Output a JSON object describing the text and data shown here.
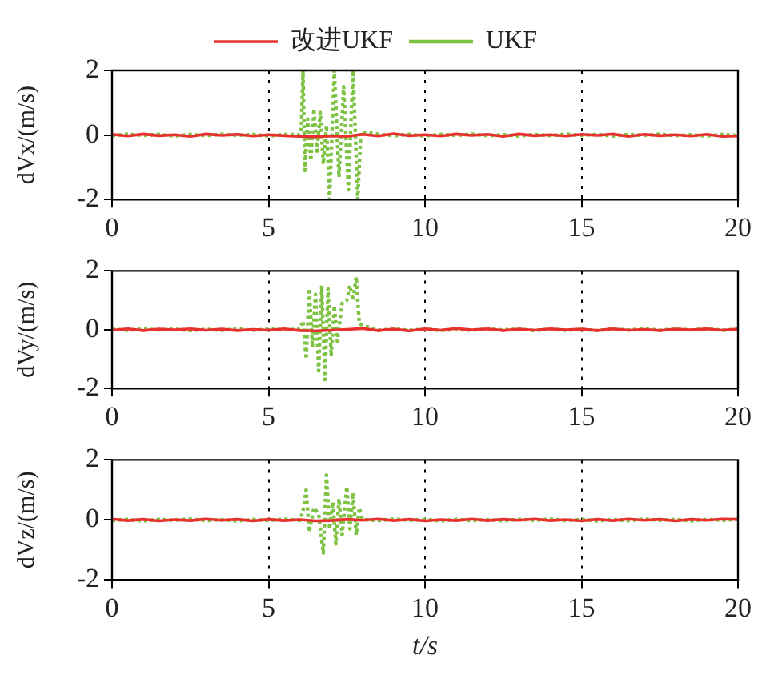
{
  "chart_data": [
    {
      "type": "line",
      "ylabel": "dVx/(m/s)",
      "xlim": [
        0,
        20
      ],
      "ylim": [
        -2,
        2
      ],
      "xticks": [
        0,
        5,
        10,
        15,
        20
      ],
      "yticks": [
        -2,
        0,
        2
      ],
      "grid": "x",
      "legend": "top",
      "marker": "none",
      "series": [
        {
          "name": "改进UKF",
          "color": "#e8312f",
          "line_style": "solid",
          "x": [
            0,
            0.5,
            1,
            1.5,
            2,
            2.5,
            3,
            3.5,
            4,
            4.5,
            5,
            5.5,
            6,
            6.5,
            7,
            7.5,
            8,
            8.5,
            9,
            9.5,
            10,
            10.5,
            11,
            11.5,
            12,
            12.5,
            13,
            13.5,
            14,
            14.5,
            15,
            15.5,
            16,
            16.5,
            17,
            17.5,
            18,
            18.5,
            19,
            19.5,
            20
          ],
          "values": [
            0.02,
            -0.03,
            0.03,
            -0.02,
            0.01,
            -0.04,
            0.03,
            -0.01,
            0.02,
            -0.03,
            0.01,
            -0.02,
            -0.04,
            -0.05,
            -0.03,
            -0.04,
            0.02,
            -0.03,
            0.04,
            -0.02,
            0.01,
            -0.03,
            0.03,
            -0.01,
            0.02,
            -0.04,
            0.03,
            -0.02,
            0.01,
            -0.03,
            0.02,
            -0.01,
            0.03,
            -0.04,
            0.02,
            -0.02,
            0.01,
            -0.03,
            0.02,
            -0.04,
            -0.03
          ]
        },
        {
          "name": "UKF",
          "color": "#7dc242",
          "line_style": "dotted",
          "x": [
            0,
            0.5,
            1,
            1.5,
            2,
            2.5,
            3,
            3.5,
            4,
            4.5,
            5,
            5.5,
            6,
            6.05,
            6.1,
            6.16,
            6.25,
            6.35,
            6.45,
            6.55,
            6.65,
            6.75,
            6.85,
            6.95,
            7.1,
            7.25,
            7.4,
            7.55,
            7.7,
            7.85,
            7.95,
            8.5,
            9,
            9.5,
            10,
            10.5,
            11,
            11.5,
            12,
            12.5,
            13,
            13.5,
            14,
            14.5,
            15,
            15.5,
            16,
            16.5,
            17,
            17.5,
            18,
            18.5,
            19,
            19.5,
            20
          ],
          "values": [
            -0.02,
            0.03,
            -0.01,
            0.02,
            -0.03,
            0.02,
            -0.02,
            0.03,
            -0.01,
            0.02,
            -0.03,
            0.02,
            0.01,
            0.3,
            2,
            -1.1,
            0.5,
            -0.8,
            0.8,
            -0.5,
            0.7,
            -0.9,
            0.3,
            -2,
            2,
            -1.3,
            1.5,
            -1.7,
            2,
            -2,
            0.1,
            0.03,
            -0.02,
            0.02,
            -0.03,
            0.02,
            -0.01,
            0.03,
            -0.02,
            0.01,
            -0.03,
            0.02,
            -0.02,
            0.03,
            -0.01,
            0.02,
            -0.03,
            0.02,
            -0.01,
            0.03,
            -0.02,
            0.01,
            -0.03,
            0.02,
            -0.01
          ]
        }
      ]
    },
    {
      "type": "line",
      "ylabel": "dVy/(m/s)",
      "xlim": [
        0,
        20
      ],
      "ylim": [
        -2,
        2
      ],
      "xticks": [
        0,
        5,
        10,
        15,
        20
      ],
      "yticks": [
        -2,
        0,
        2
      ],
      "grid": "x",
      "legend": false,
      "marker": "none",
      "series": [
        {
          "color": "#e8312f",
          "line_style": "solid",
          "x": [
            0,
            0.5,
            1,
            1.5,
            2,
            2.5,
            3,
            3.5,
            4,
            4.5,
            5,
            5.5,
            6,
            6.5,
            7,
            7.5,
            8,
            8.5,
            9,
            9.5,
            10,
            10.5,
            11,
            11.5,
            12,
            12.5,
            13,
            13.5,
            14,
            14.5,
            15,
            15.5,
            16,
            16.5,
            17,
            17.5,
            18,
            18.5,
            19,
            19.5,
            20
          ],
          "values": [
            -0.02,
            0.03,
            -0.03,
            0.02,
            -0.01,
            0.03,
            -0.02,
            0.02,
            -0.03,
            0.01,
            -0.02,
            0.03,
            -0.03,
            -0.04,
            -0.02,
            0.01,
            0.04,
            -0.03,
            0.02,
            -0.04,
            0.03,
            -0.02,
            0.04,
            -0.01,
            0.03,
            -0.03,
            0.02,
            -0.02,
            0.03,
            -0.01,
            0.02,
            -0.03,
            0.03,
            -0.02,
            0.01,
            -0.03,
            0.02,
            -0.01,
            0.03,
            -0.02,
            0.02
          ]
        },
        {
          "color": "#7dc242",
          "line_style": "dotted",
          "x": [
            0,
            0.5,
            1,
            1.5,
            2,
            2.5,
            3,
            3.5,
            4,
            4.5,
            5,
            5.5,
            6,
            6.1,
            6.2,
            6.3,
            6.4,
            6.5,
            6.6,
            6.7,
            6.8,
            6.9,
            7.0,
            7.1,
            7.2,
            7.35,
            7.5,
            7.6,
            7.7,
            7.8,
            7.9,
            8.5,
            9,
            9.5,
            10,
            10.5,
            11,
            11.5,
            12,
            12.5,
            13,
            13.5,
            14,
            14.5,
            15,
            15.5,
            16,
            16.5,
            17,
            17.5,
            18,
            18.5,
            19,
            19.5,
            20
          ],
          "values": [
            0.02,
            -0.02,
            0.03,
            -0.01,
            0.02,
            -0.03,
            0.01,
            -0.02,
            0.03,
            -0.02,
            0.02,
            -0.01,
            0.02,
            0.3,
            -1.0,
            1.4,
            -0.6,
            1.2,
            -1.4,
            1.5,
            -1.7,
            1.4,
            -0.9,
            0.8,
            -0.4,
            0.9,
            1.0,
            1.5,
            1.0,
            1.8,
            0.2,
            -0.02,
            0.03,
            -0.02,
            0.02,
            -0.03,
            0.01,
            -0.02,
            0.03,
            -0.01,
            0.02,
            -0.03,
            0.02,
            -0.02,
            0.01,
            -0.03,
            0.02,
            -0.01,
            0.03,
            -0.02,
            0.02,
            -0.01,
            0.03,
            -0.02,
            0.02
          ]
        }
      ]
    },
    {
      "type": "line",
      "xlabel": "t/s",
      "ylabel": "dVz/(m/s)",
      "xlim": [
        0,
        20
      ],
      "ylim": [
        -2,
        2
      ],
      "xticks": [
        0,
        5,
        10,
        15,
        20
      ],
      "yticks": [
        -2,
        0,
        2
      ],
      "grid": "x",
      "legend": false,
      "marker": "none",
      "series": [
        {
          "color": "#e8312f",
          "line_style": "solid",
          "x": [
            0,
            0.5,
            1,
            1.5,
            2,
            2.5,
            3,
            3.5,
            4,
            4.5,
            5,
            5.5,
            6,
            6.5,
            7,
            7.5,
            8,
            8.5,
            9,
            9.5,
            10,
            10.5,
            11,
            11.5,
            12,
            12.5,
            13,
            13.5,
            14,
            14.5,
            15,
            15.5,
            16,
            16.5,
            17,
            17.5,
            18,
            18.5,
            19,
            19.5,
            20
          ],
          "values": [
            0.03,
            -0.02,
            0.02,
            -0.03,
            0.01,
            -0.02,
            0.03,
            -0.01,
            0.02,
            -0.03,
            0.02,
            -0.02,
            0.01,
            -0.03,
            -0.02,
            0.02,
            -0.01,
            0.03,
            -0.02,
            0.02,
            -0.03,
            0.01,
            -0.02,
            0.03,
            -0.02,
            0.02,
            -0.01,
            0.03,
            -0.02,
            0.01,
            -0.03,
            0.02,
            -0.02,
            0.03,
            -0.01,
            0.02,
            -0.03,
            0.02,
            -0.01,
            0.03,
            0.02
          ]
        },
        {
          "color": "#7dc242",
          "line_style": "dotted",
          "x": [
            0,
            0.5,
            1,
            1.5,
            2,
            2.5,
            3,
            3.5,
            4,
            4.5,
            5,
            5.5,
            6,
            6.1,
            6.2,
            6.3,
            6.45,
            6.6,
            6.75,
            6.85,
            6.95,
            7.05,
            7.15,
            7.25,
            7.35,
            7.5,
            7.6,
            7.7,
            7.8,
            7.9,
            8.0,
            8.5,
            9,
            9.5,
            10,
            10.5,
            11,
            11.5,
            12,
            12.5,
            13,
            13.5,
            14,
            14.5,
            15,
            15.5,
            16,
            16.5,
            17,
            17.5,
            18,
            18.5,
            19,
            19.5,
            20
          ],
          "values": [
            -0.02,
            0.02,
            -0.03,
            0.02,
            -0.01,
            0.03,
            -0.02,
            0.01,
            -0.03,
            0.02,
            -0.02,
            0.03,
            -0.01,
            0.3,
            1.0,
            -0.4,
            0.4,
            0.2,
            -1.1,
            1.5,
            -0.3,
            0.6,
            -0.8,
            0.7,
            -0.5,
            1.1,
            -0.3,
            0.9,
            -0.5,
            0.4,
            0.02,
            -0.02,
            0.03,
            -0.01,
            0.02,
            -0.03,
            0.02,
            -0.02,
            0.01,
            -0.03,
            0.02,
            -0.01,
            0.03,
            -0.02,
            0.02,
            -0.03,
            0.01,
            -0.02,
            0.03,
            -0.01,
            0.02,
            -0.03,
            0.02,
            -0.01,
            0.02
          ]
        }
      ]
    }
  ]
}
